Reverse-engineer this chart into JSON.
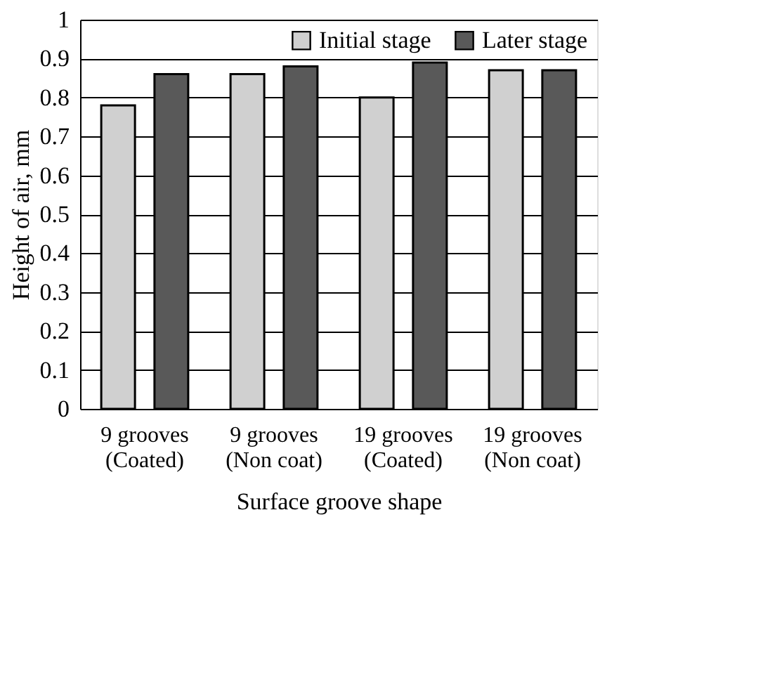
{
  "chart_data": {
    "type": "bar",
    "xlabel": "Surface groove shape",
    "ylabel": "Height of air, mm",
    "categories": [
      "9 grooves\n(Coated)",
      "9 grooves\n(Non coat)",
      "19 grooves\n(Coated)",
      "19 grooves\n(Non coat)"
    ],
    "series": [
      {
        "name": "Initial stage",
        "color": "#d0d0d0",
        "values": [
          0.78,
          0.86,
          0.8,
          0.87
        ]
      },
      {
        "name": "Later stage",
        "color": "#595959",
        "values": [
          0.86,
          0.88,
          0.89,
          0.87
        ]
      }
    ],
    "ylim": [
      0,
      1
    ],
    "yticks": [
      0,
      0.1,
      0.2,
      0.3,
      0.4,
      0.5,
      0.6,
      0.7,
      0.8,
      0.9,
      1
    ],
    "grid": "y",
    "legend": "top right"
  }
}
